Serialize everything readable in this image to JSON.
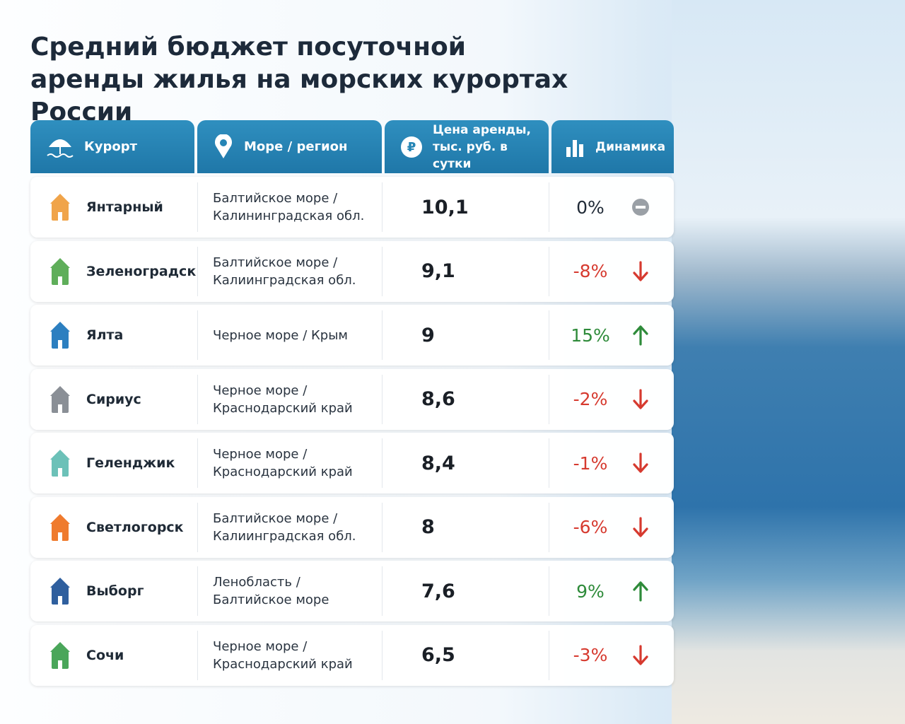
{
  "header": {
    "title": "Средний бюджет посуточной аренды жилья на морских курортах России"
  },
  "table": {
    "columns": [
      "Курорт",
      "Море / регион",
      "Цена аренды, тыс. руб. в сутки",
      "Динамика"
    ],
    "rows": [
      {
        "resort": "Янтарный",
        "region": "Балтийское море / Калининградская обл.",
        "price": "10,1",
        "change": "0%",
        "trend": "flat"
      },
      {
        "resort": "Зеленоградск",
        "region": "Балтийское море / Калиинградская обл.",
        "price": "9,1",
        "change": "-8%",
        "trend": "down"
      },
      {
        "resort": "Ялта",
        "region": "Черное море / Крым",
        "price": "9",
        "change": "15%",
        "trend": "up"
      },
      {
        "resort": "Сириус",
        "region": "Черное море / Краснодарский край",
        "price": "8,6",
        "change": "-2%",
        "trend": "down"
      },
      {
        "resort": "Геленджик",
        "region": "Черное море / Краснодарский край",
        "price": "8,4",
        "change": "-1%",
        "trend": "down"
      },
      {
        "resort": "Светлогорск",
        "region": "Балтийское море / Калиинградская обл.",
        "price": "8",
        "change": "-6%",
        "trend": "down"
      },
      {
        "resort": "Выборг",
        "region": "Ленобласть / Балтийское море",
        "price": "7,6",
        "change": "9%",
        "trend": "up"
      },
      {
        "resort": "Сочи",
        "region": "Черное море / Краснодарский край",
        "price": "6,5",
        "change": "-3%",
        "trend": "down"
      }
    ]
  }
}
